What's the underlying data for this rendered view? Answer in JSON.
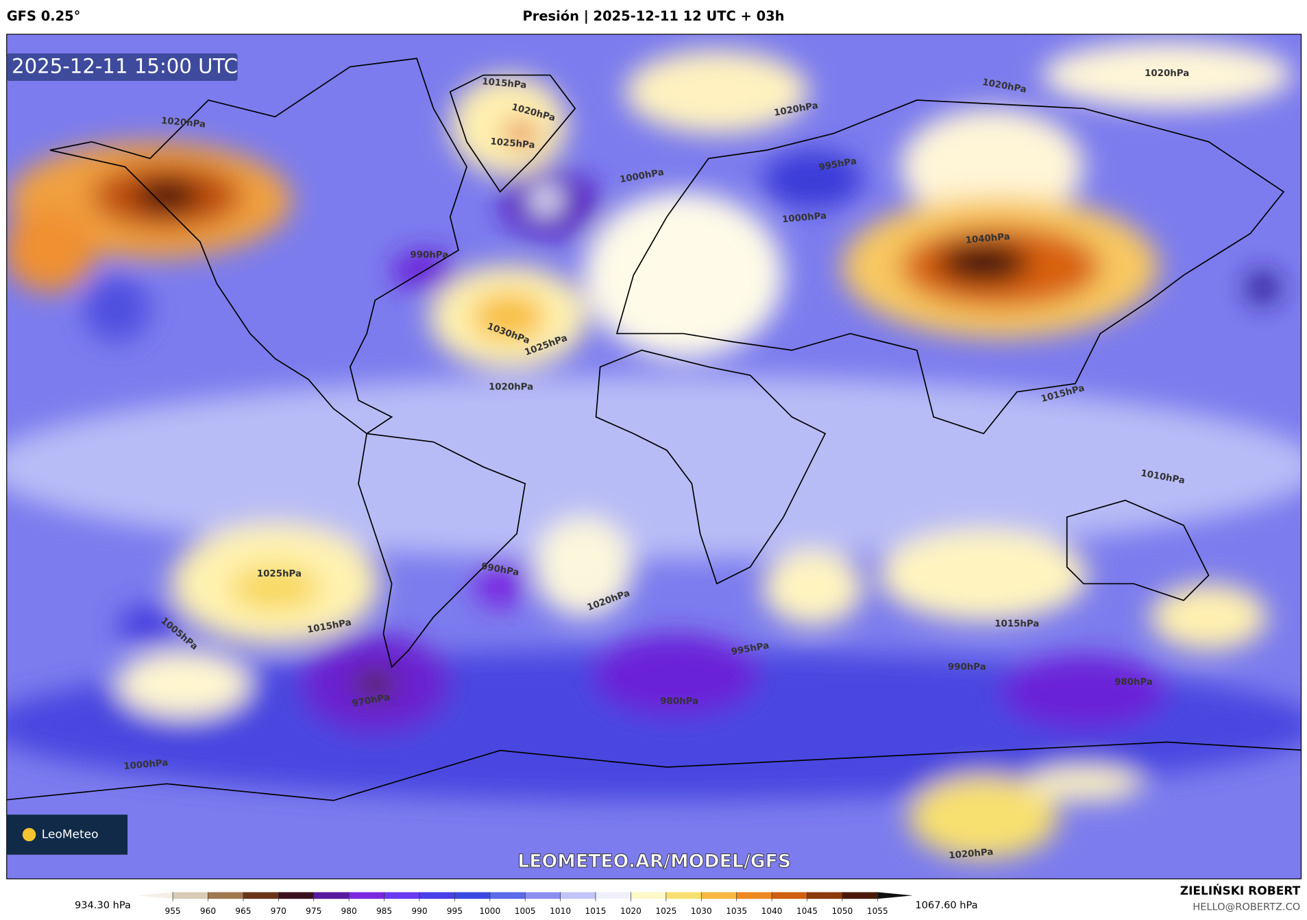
{
  "header": {
    "model": "GFS 0.25°",
    "title": "Presión | 2025-12-11 12 UTC + 03h"
  },
  "map": {
    "timestamp": "2025-12-11 15:00 UTC",
    "logo": "LeoMeteo",
    "watermark": "LEOMETEO.AR/MODEL/GFS",
    "isobar_labels": [
      "1020hPa",
      "1015hPa",
      "1020hPa",
      "1025hPa",
      "1000hPa",
      "995hPa",
      "1000hPa",
      "1020hPa",
      "1020hPa",
      "1020hPa",
      "1040hPa",
      "1030hPa",
      "1025hPa",
      "1020hPa",
      "990hPa",
      "1025hPa",
      "1015hPa",
      "990hPa",
      "1020hPa",
      "995hPa",
      "980hPa",
      "970hPa",
      "1000hPa",
      "990hPa",
      "980hPa",
      "1020hPa",
      "1015hPa",
      "1010hPa",
      "1015hPa",
      "1005hPa"
    ]
  },
  "colorbar": {
    "min_label": "934.30 hPa",
    "max_label": "1067.60 hPa",
    "range": [
      950,
      1060
    ],
    "ticks": [
      955,
      960,
      965,
      970,
      975,
      980,
      985,
      990,
      995,
      1000,
      1005,
      1010,
      1015,
      1020,
      1025,
      1030,
      1035,
      1040,
      1045,
      1050,
      1055
    ],
    "colors": [
      "#f4f0e8",
      "#d8ccb8",
      "#a07850",
      "#6a3418",
      "#3a1020",
      "#5a1aa0",
      "#7a28e0",
      "#6a3af0",
      "#4a40e8",
      "#3a4ae0",
      "#5a6aea",
      "#8a90f0",
      "#c0c4f8",
      "#f0f0fc",
      "#fff8c8",
      "#f8e070",
      "#f8b840",
      "#f08820",
      "#d06010",
      "#8a3a0c",
      "#4a1808",
      "#101010"
    ]
  },
  "footer": {
    "author": "ZIELIŃSKI ROBERT",
    "email": "HELLO@ROBERTZ.CO"
  }
}
